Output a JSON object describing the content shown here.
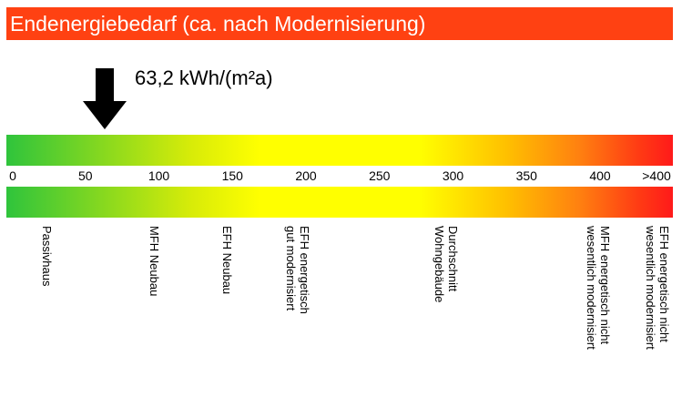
{
  "header": {
    "title": "Endenergiebedarf (ca. nach Modernisierung)",
    "color": "#ff4112"
  },
  "indicator": {
    "value_label": "63,2 kWh/(m²a)",
    "value": 63.2,
    "unit": "kWh/(m²a)",
    "icon": "arrow-down-icon"
  },
  "scale": {
    "min": 0,
    "max": 400,
    "colors": [
      "#2fc43c",
      "#ffff00",
      "#ff1a1a"
    ],
    "ticks": [
      {
        "label": "0",
        "value": 0
      },
      {
        "label": "50",
        "value": 50
      },
      {
        "label": "100",
        "value": 100
      },
      {
        "label": "150",
        "value": 150
      },
      {
        "label": "200",
        "value": 200
      },
      {
        "label": "250",
        "value": 250
      },
      {
        "label": "300",
        "value": 300
      },
      {
        "label": "350",
        "value": 350
      },
      {
        "label": "400",
        "value": 400
      },
      {
        "label": ">400",
        "value": 425
      }
    ]
  },
  "categories": [
    {
      "label": "Passivhaus",
      "value": 15
    },
    {
      "label": "MFH Neubau",
      "value": 100
    },
    {
      "label": "EFH Neubau",
      "value": 150
    },
    {
      "label": "EFH energetisch\ngut modernisiert",
      "value": 200
    },
    {
      "label": "Durchschnitt\nWohngebäude",
      "value": 300
    },
    {
      "label": "MFH energetisch nicht\nwesentlich modernisiert",
      "value": 400
    },
    {
      "label": "EFH energetisch nicht\nwesentlich modernisiert",
      "value": 430
    }
  ]
}
